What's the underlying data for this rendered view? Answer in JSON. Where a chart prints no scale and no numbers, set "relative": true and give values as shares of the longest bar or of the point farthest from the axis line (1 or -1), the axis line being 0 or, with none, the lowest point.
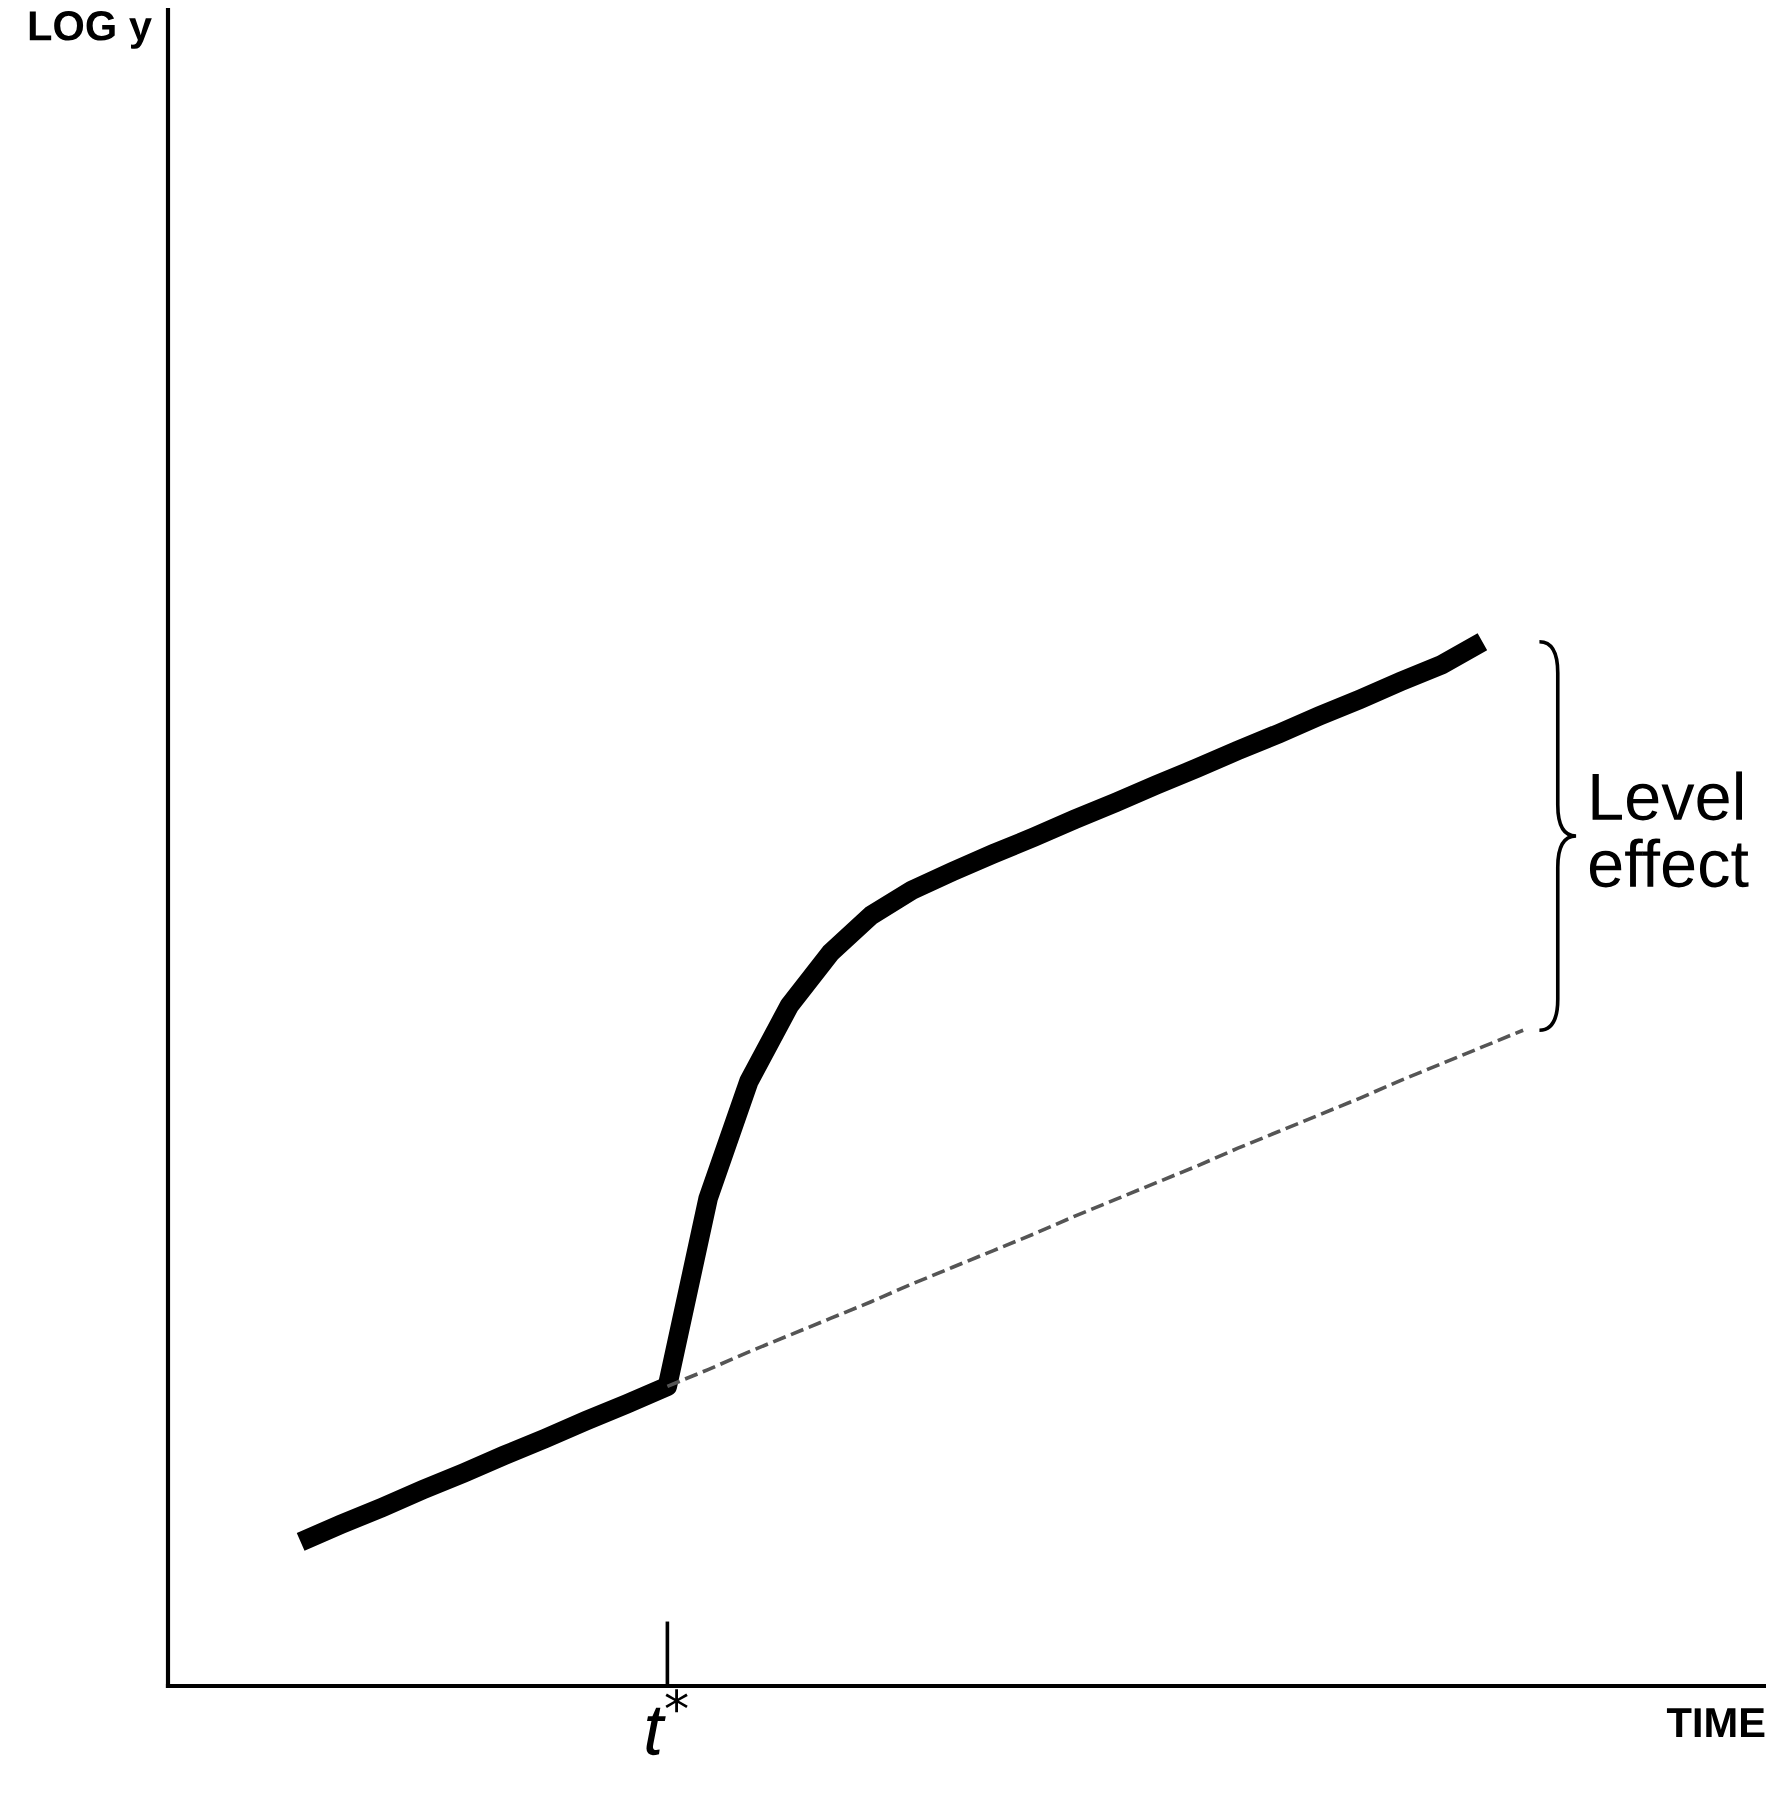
{
  "chart_data": {
    "type": "line",
    "relative": true,
    "xlabel": "TIME",
    "annotations": [
      "Level\neffect",
      "t$^{*}$",
      "LOG y"
    ],
    "categories": [
      null,
      null,
      null,
      null,
      null,
      null,
      null,
      null,
      null,
      null,
      null,
      null,
      null,
      null,
      null,
      null,
      null,
      null,
      null,
      null,
      null,
      null,
      null,
      null,
      null,
      null,
      null,
      null,
      null,
      null,
      null
    ],
    "series": [
      {
        "color": "#000000",
        "line_style": "solid",
        "values": [
          0.138,
          0.155,
          0.171,
          0.188,
          0.204,
          0.221,
          0.237,
          0.254,
          0.27,
          0.287,
          0.467,
          0.579,
          0.652,
          0.702,
          0.738,
          0.762,
          0.78,
          0.797,
          0.813,
          0.83,
          0.846,
          0.863,
          0.879,
          0.896,
          0.912,
          0.929,
          0.945,
          0.962,
          0.978,
          1.0,
          null
        ]
      },
      {
        "color": "#555555",
        "line_style": "dashed",
        "values": [
          null,
          null,
          null,
          null,
          null,
          null,
          null,
          null,
          null,
          0.287,
          0.303,
          0.32,
          0.336,
          0.352,
          0.368,
          0.385,
          0.401,
          0.417,
          0.433,
          0.45,
          0.466,
          0.482,
          0.498,
          0.515,
          0.531,
          0.547,
          0.563,
          0.58,
          0.596,
          0.612,
          0.628
        ]
      }
    ]
  }
}
